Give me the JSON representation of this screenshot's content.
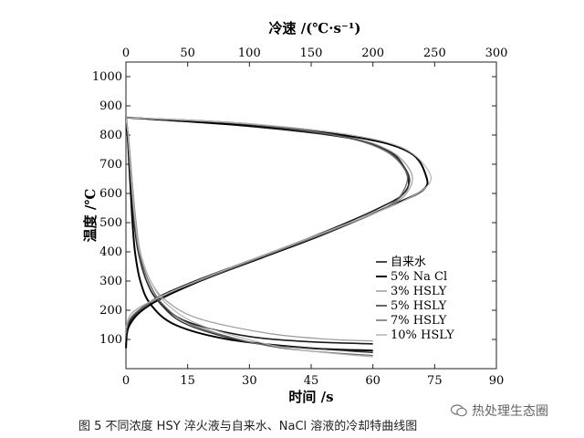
{
  "caption": "图 5   不同浓度 HSY 淬火液与自来水、NaCl 溶液的冷却特曲线图",
  "watermark": "热处理生态圈",
  "chart_data": {
    "type": "line",
    "title": "",
    "xlabel": "时间 /s",
    "x2label": "冷速 /(℃·s⁻¹)",
    "ylabel": "温度 /℃",
    "xlim": [
      0,
      90
    ],
    "x2lim": [
      0,
      300
    ],
    "ylim": [
      0,
      1050
    ],
    "x_ticks": [
      "0",
      "15",
      "30",
      "45",
      "60",
      "75",
      "90"
    ],
    "x2_ticks": [
      "0",
      "50",
      "100",
      "150",
      "200",
      "250",
      "300"
    ],
    "y_ticks": [
      "100",
      "200",
      "300",
      "400",
      "500",
      "600",
      "700",
      "800",
      "900",
      "1000"
    ],
    "legend_position": "lower-right",
    "legend": [
      "自来水",
      "5% Na Cl",
      "3% HSLY",
      "5% HSLY",
      "7% HSLY",
      "10% HSLY"
    ],
    "series": [
      {
        "name": "自来水",
        "color": "#1a1a1a",
        "stroke_width": 1.6,
        "time_curve": [
          [
            0,
            860
          ],
          [
            0.5,
            800
          ],
          [
            1,
            700
          ],
          [
            1.5,
            600
          ],
          [
            2,
            500
          ],
          [
            3,
            400
          ],
          [
            5,
            300
          ],
          [
            8,
            230
          ],
          [
            15,
            160
          ],
          [
            30,
            110
          ],
          [
            45,
            92
          ],
          [
            60,
            85
          ]
        ],
        "rate_curve": [
          [
            0,
            80
          ],
          [
            3,
            160
          ],
          [
            20,
            230
          ],
          [
            50,
            290
          ],
          [
            100,
            370
          ],
          [
            150,
            450
          ],
          [
            200,
            540
          ],
          [
            225,
            600
          ],
          [
            228,
            660
          ],
          [
            215,
            740
          ],
          [
            180,
            790
          ],
          [
            100,
            830
          ],
          [
            0,
            860
          ]
        ]
      },
      {
        "name": "5% Na Cl",
        "color": "#000000",
        "stroke_width": 2.0,
        "time_curve": [
          [
            0,
            860
          ],
          [
            0.4,
            800
          ],
          [
            0.8,
            700
          ],
          [
            1.2,
            600
          ],
          [
            1.6,
            500
          ],
          [
            2.2,
            400
          ],
          [
            3.5,
            300
          ],
          [
            6,
            220
          ],
          [
            12,
            150
          ],
          [
            25,
            100
          ],
          [
            45,
            70
          ],
          [
            60,
            62
          ]
        ],
        "rate_curve": [
          [
            0,
            70
          ],
          [
            3,
            150
          ],
          [
            20,
            220
          ],
          [
            60,
            300
          ],
          [
            110,
            380
          ],
          [
            160,
            460
          ],
          [
            210,
            550
          ],
          [
            240,
            610
          ],
          [
            243,
            660
          ],
          [
            230,
            740
          ],
          [
            190,
            790
          ],
          [
            110,
            830
          ],
          [
            0,
            860
          ]
        ]
      },
      {
        "name": "3% HSLY",
        "color": "#9a9a9a",
        "stroke_width": 1.2,
        "time_curve": [
          [
            0,
            860
          ],
          [
            0.6,
            800
          ],
          [
            1.2,
            700
          ],
          [
            1.8,
            600
          ],
          [
            2.5,
            500
          ],
          [
            3.5,
            400
          ],
          [
            6,
            300
          ],
          [
            10,
            230
          ],
          [
            18,
            170
          ],
          [
            35,
            120
          ],
          [
            50,
            100
          ],
          [
            60,
            95
          ]
        ],
        "rate_curve": [
          [
            0,
            130
          ],
          [
            5,
            190
          ],
          [
            30,
            250
          ],
          [
            70,
            320
          ],
          [
            120,
            400
          ],
          [
            170,
            480
          ],
          [
            215,
            560
          ],
          [
            230,
            620
          ],
          [
            230,
            680
          ],
          [
            212,
            750
          ],
          [
            170,
            800
          ],
          [
            90,
            840
          ],
          [
            0,
            860
          ]
        ]
      },
      {
        "name": "5% HSLY",
        "color": "#333333",
        "stroke_width": 1.4,
        "time_curve": [
          [
            0,
            860
          ],
          [
            0.5,
            800
          ],
          [
            1,
            700
          ],
          [
            1.5,
            600
          ],
          [
            2,
            500
          ],
          [
            3,
            400
          ],
          [
            5,
            300
          ],
          [
            8.5,
            220
          ],
          [
            15,
            150
          ],
          [
            30,
            90
          ],
          [
            45,
            70
          ],
          [
            60,
            55
          ]
        ],
        "rate_curve": [
          [
            0,
            110
          ],
          [
            4,
            170
          ],
          [
            25,
            240
          ],
          [
            65,
            310
          ],
          [
            115,
            390
          ],
          [
            165,
            470
          ],
          [
            210,
            550
          ],
          [
            228,
            620
          ],
          [
            227,
            680
          ],
          [
            210,
            750
          ],
          [
            170,
            800
          ],
          [
            95,
            840
          ],
          [
            0,
            860
          ]
        ]
      },
      {
        "name": "7% HSLY",
        "color": "#6a6a6a",
        "stroke_width": 1.3,
        "time_curve": [
          [
            0,
            860
          ],
          [
            0.5,
            800
          ],
          [
            1,
            700
          ],
          [
            1.5,
            600
          ],
          [
            2.2,
            500
          ],
          [
            3.2,
            400
          ],
          [
            5.5,
            300
          ],
          [
            9,
            220
          ],
          [
            16,
            150
          ],
          [
            32,
            85
          ],
          [
            45,
            60
          ],
          [
            60,
            45
          ]
        ],
        "rate_curve": [
          [
            0,
            120
          ],
          [
            5,
            180
          ],
          [
            28,
            245
          ],
          [
            68,
            315
          ],
          [
            118,
            395
          ],
          [
            168,
            475
          ],
          [
            212,
            555
          ],
          [
            226,
            620
          ],
          [
            226,
            680
          ],
          [
            208,
            750
          ],
          [
            168,
            800
          ],
          [
            92,
            840
          ],
          [
            0,
            860
          ]
        ]
      },
      {
        "name": "10% HSLY",
        "color": "#b3b3b3",
        "stroke_width": 1.2,
        "time_curve": [
          [
            0,
            860
          ],
          [
            0.5,
            800
          ],
          [
            1,
            700
          ],
          [
            1.6,
            600
          ],
          [
            2.3,
            500
          ],
          [
            3.4,
            400
          ],
          [
            6,
            300
          ],
          [
            10,
            220
          ],
          [
            18,
            150
          ],
          [
            34,
            85
          ],
          [
            45,
            60
          ],
          [
            60,
            40
          ]
        ],
        "rate_curve": [
          [
            0,
            140
          ],
          [
            6,
            195
          ],
          [
            32,
            255
          ],
          [
            72,
            325
          ],
          [
            122,
            405
          ],
          [
            172,
            485
          ],
          [
            220,
            565
          ],
          [
            245,
            630
          ],
          [
            243,
            690
          ],
          [
            222,
            760
          ],
          [
            175,
            805
          ],
          [
            95,
            840
          ],
          [
            0,
            860
          ]
        ]
      }
    ]
  }
}
